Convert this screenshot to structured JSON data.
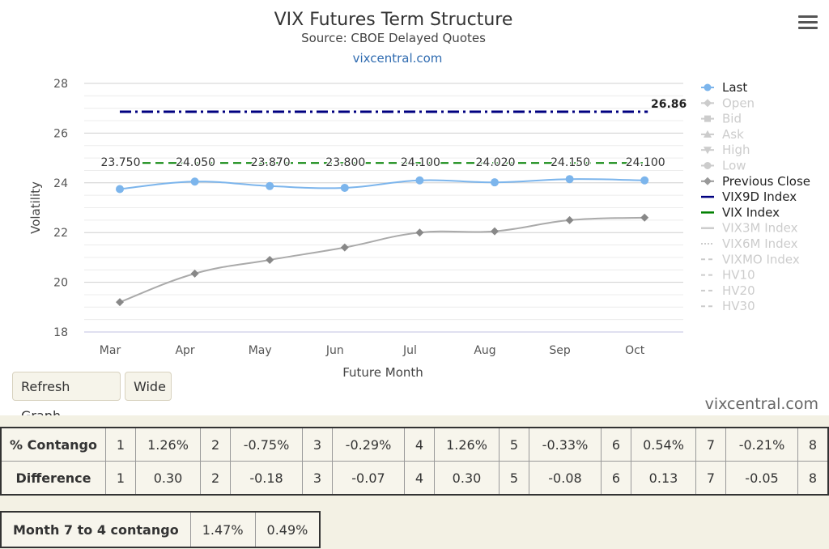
{
  "chart_data": {
    "type": "line",
    "title": "VIX Futures Term Structure",
    "subtitle": "Source: CBOE Delayed Quotes",
    "link_text": "vixcentral.com",
    "xlabel": "Future Month",
    "ylabel": "Volatility",
    "categories": [
      "Mar",
      "Apr",
      "May",
      "Jun",
      "Jul",
      "Aug",
      "Sep",
      "Oct"
    ],
    "ylim": [
      18,
      28
    ],
    "yticks": [
      18,
      20,
      22,
      24,
      26,
      28
    ],
    "grid": true,
    "legend_position": "right",
    "series": [
      {
        "name": "Last",
        "values": [
          23.75,
          24.05,
          23.87,
          23.8,
          24.1,
          24.02,
          24.15,
          24.1
        ],
        "color": "#7cb5ec",
        "labels": [
          "23.750",
          "24.050",
          "23.870",
          "23.800",
          "24.100",
          "24.020",
          "24.150",
          "24.100"
        ]
      },
      {
        "name": "Previous Close",
        "values": [
          19.2,
          20.35,
          20.9,
          21.4,
          22.0,
          22.05,
          22.5,
          22.6
        ],
        "color": "#aaaaaa"
      },
      {
        "name": "VIX9D Index",
        "value": 26.86,
        "value_label": "26.86",
        "color": "#000080"
      },
      {
        "name": "VIX Index",
        "value": 24.8,
        "color": "#008000"
      }
    ],
    "legend": [
      {
        "name": "Last",
        "active": true,
        "symbol": "circle-line",
        "color": "#7cb5ec"
      },
      {
        "name": "Open",
        "active": false,
        "symbol": "diamond-line"
      },
      {
        "name": "Bid",
        "active": false,
        "symbol": "square-line"
      },
      {
        "name": "Ask",
        "active": false,
        "symbol": "triangle-line"
      },
      {
        "name": "High",
        "active": false,
        "symbol": "triangle-down-line"
      },
      {
        "name": "Low",
        "active": false,
        "symbol": "circle-line"
      },
      {
        "name": "Previous Close",
        "active": true,
        "symbol": "diamond-line",
        "color": "#999999"
      },
      {
        "name": "VIX9D Index",
        "active": true,
        "symbol": "solid",
        "color": "#000080"
      },
      {
        "name": "VIX Index",
        "active": true,
        "symbol": "solid",
        "color": "#008000"
      },
      {
        "name": "VIX3M Index",
        "active": false,
        "symbol": "solid"
      },
      {
        "name": "VIX6M Index",
        "active": false,
        "symbol": "dot"
      },
      {
        "name": "VIXMO Index",
        "active": false,
        "symbol": "dash"
      },
      {
        "name": "HV10",
        "active": false,
        "symbol": "dash"
      },
      {
        "name": "HV20",
        "active": false,
        "symbol": "dash"
      },
      {
        "name": "HV30",
        "active": false,
        "symbol": "dash"
      }
    ]
  },
  "buttons": {
    "refresh": "Refresh Graph",
    "wide": "Wide"
  },
  "credit": "vixcentral.com",
  "contango_table": {
    "rows": [
      {
        "label": "% Contango",
        "cells": [
          "1",
          "1.26%",
          "2",
          "-0.75%",
          "3",
          "-0.29%",
          "4",
          "1.26%",
          "5",
          "-0.33%",
          "6",
          "0.54%",
          "7",
          "-0.21%",
          "8"
        ]
      },
      {
        "label": "Difference",
        "cells": [
          "1",
          "0.30",
          "2",
          "-0.18",
          "3",
          "-0.07",
          "4",
          "0.30",
          "5",
          "-0.08",
          "6",
          "0.13",
          "7",
          "-0.05",
          "8"
        ]
      }
    ]
  },
  "month7to4": {
    "label": "Month 7 to 4 contango",
    "values": [
      "1.47%",
      "0.49%"
    ]
  }
}
